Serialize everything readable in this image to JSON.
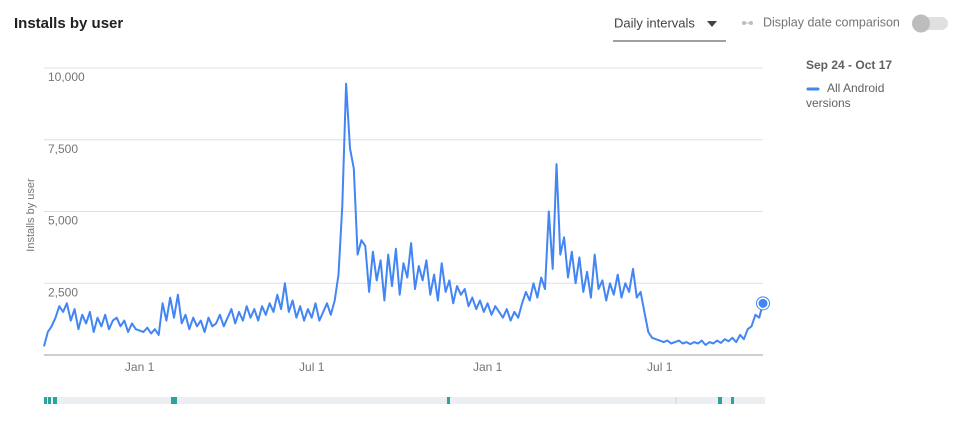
{
  "controls": {
    "interval": "Daily intervals",
    "comparison": "Display date comparison"
  },
  "chart_data": {
    "type": "line",
    "title": "Installs by user",
    "y_label": "Installs by user",
    "date_range": "Sep 24 - Oct 17",
    "categories": [
      null,
      null,
      null,
      null,
      null,
      null,
      null,
      null,
      null,
      null,
      null,
      null,
      null,
      null,
      null,
      null,
      null,
      null,
      null,
      null,
      null,
      null,
      null,
      null,
      null,
      "Jan 1",
      null,
      null,
      null,
      null,
      null,
      null,
      null,
      null,
      null,
      null,
      null,
      null,
      null,
      null,
      null,
      null,
      null,
      null,
      null,
      null,
      null,
      null,
      null,
      null,
      null,
      null,
      null,
      null,
      null,
      null,
      null,
      null,
      null,
      null,
      null,
      null,
      null,
      null,
      null,
      null,
      null,
      null,
      null,
      null,
      "Jul 1",
      null,
      null,
      null,
      null,
      null,
      null,
      null,
      null,
      null,
      null,
      null,
      null,
      null,
      null,
      null,
      null,
      null,
      null,
      null,
      null,
      null,
      null,
      null,
      null,
      null,
      null,
      null,
      null,
      null,
      null,
      null,
      null,
      null,
      null,
      null,
      null,
      null,
      null,
      null,
      null,
      null,
      null,
      null,
      null,
      null,
      "Jan 1",
      null,
      null,
      null,
      null,
      null,
      null,
      null,
      null,
      null,
      null,
      null,
      null,
      null,
      null,
      null,
      null,
      null,
      null,
      null,
      null,
      null,
      null,
      null,
      null,
      null,
      null,
      null,
      null,
      null,
      null,
      null,
      null,
      null,
      null,
      null,
      null,
      null,
      null,
      null,
      null,
      null,
      null,
      null,
      null,
      "Jul 1",
      null,
      null,
      null,
      null,
      null,
      null,
      null,
      null,
      null,
      null,
      null,
      null,
      null,
      null,
      null,
      null,
      null,
      null,
      null,
      null,
      null,
      null,
      null,
      null,
      null,
      null,
      null
    ],
    "series": [
      {
        "name": "All Android versions",
        "color": "#4285f4",
        "values": [
          300,
          800,
          1000,
          1300,
          1700,
          1500,
          1800,
          1200,
          1600,
          900,
          1400,
          1100,
          1500,
          800,
          1300,
          1000,
          1400,
          900,
          1200,
          1300,
          1000,
          1200,
          800,
          1100,
          900,
          850,
          800,
          950,
          750,
          900,
          700,
          1800,
          1200,
          2000,
          1300,
          2100,
          1100,
          1400,
          900,
          1300,
          1000,
          1200,
          800,
          1300,
          1000,
          1100,
          1400,
          1000,
          1300,
          1600,
          1100,
          1500,
          1200,
          1700,
          1300,
          1600,
          1200,
          1700,
          1400,
          1800,
          1500,
          2100,
          1600,
          2500,
          1500,
          1900,
          1300,
          1700,
          1200,
          1600,
          1300,
          1800,
          1200,
          1500,
          1800,
          1400,
          1900,
          2800,
          5200,
          9450,
          7200,
          6500,
          3500,
          4000,
          3800,
          2200,
          3600,
          2600,
          3300,
          1900,
          3500,
          2400,
          3700,
          2100,
          3200,
          2700,
          3900,
          2300,
          3100,
          2600,
          3300,
          2100,
          2800,
          1900,
          3200,
          2200,
          2600,
          1800,
          2400,
          2100,
          2300,
          1700,
          2000,
          1600,
          1900,
          1500,
          1800,
          1400,
          1700,
          1500,
          1300,
          1600,
          1200,
          1500,
          1300,
          1800,
          2200,
          1900,
          2500,
          2000,
          2700,
          2300,
          5000,
          3000,
          6650,
          3500,
          4100,
          2700,
          3600,
          2500,
          3400,
          2200,
          2900,
          2000,
          3500,
          2300,
          2600,
          1900,
          2500,
          2100,
          2800,
          2000,
          2500,
          2200,
          3000,
          2000,
          2200,
          1500,
          800,
          600,
          550,
          500,
          450,
          500,
          400,
          450,
          500,
          400,
          450,
          380,
          450,
          400,
          500,
          350,
          450,
          400,
          500,
          420,
          550,
          480,
          600,
          450,
          700,
          550,
          900,
          1000,
          1400,
          1300,
          1800
        ]
      }
    ],
    "ylim": [
      0,
      10000
    ],
    "yticks": [
      {
        "value": 2500,
        "label": "2,500"
      },
      {
        "value": 5000,
        "label": "5,000"
      },
      {
        "value": 7500,
        "label": "7,500"
      },
      {
        "value": 10000,
        "label": "10,000"
      }
    ],
    "grid": true
  }
}
